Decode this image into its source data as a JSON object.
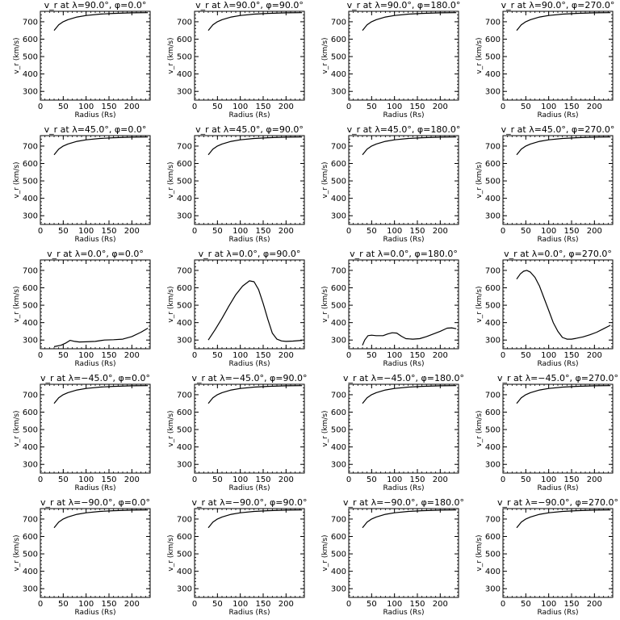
{
  "figure": {
    "xlabel": "Radius (Rs)",
    "ylabel": "v_r (km/s)",
    "xlim": [
      0,
      240
    ],
    "ylim": [
      250,
      760
    ],
    "xticks": [
      0,
      50,
      100,
      150,
      200
    ],
    "yticks": [
      300,
      400,
      500,
      600,
      700
    ]
  },
  "chart_data": [
    {
      "type": "line",
      "title": "v_r at λ=90.0°, φ=0.0°",
      "x": [
        30,
        40,
        50,
        60,
        80,
        100,
        130,
        160,
        200,
        235
      ],
      "y": [
        650,
        682,
        700,
        712,
        727,
        736,
        744,
        748,
        751,
        752
      ]
    },
    {
      "type": "line",
      "title": "v_r at λ=90.0°, φ=90.0°",
      "x": [
        30,
        40,
        50,
        60,
        80,
        100,
        130,
        160,
        200,
        235
      ],
      "y": [
        650,
        682,
        700,
        712,
        727,
        736,
        744,
        748,
        751,
        752
      ]
    },
    {
      "type": "line",
      "title": "v_r at λ=90.0°, φ=180.0°",
      "x": [
        30,
        40,
        50,
        60,
        80,
        100,
        130,
        160,
        200,
        235
      ],
      "y": [
        650,
        682,
        700,
        712,
        727,
        736,
        744,
        748,
        751,
        752
      ]
    },
    {
      "type": "line",
      "title": "v_r at λ=90.0°, φ=270.0°",
      "x": [
        30,
        40,
        50,
        60,
        80,
        100,
        130,
        160,
        200,
        235
      ],
      "y": [
        650,
        682,
        700,
        712,
        727,
        736,
        744,
        748,
        751,
        752
      ]
    },
    {
      "type": "line",
      "title": "v_r at λ=45.0°, φ=0.0°",
      "x": [
        30,
        40,
        50,
        60,
        80,
        100,
        130,
        160,
        200,
        235
      ],
      "y": [
        650,
        682,
        700,
        712,
        727,
        736,
        744,
        748,
        751,
        752
      ]
    },
    {
      "type": "line",
      "title": "v_r at λ=45.0°, φ=90.0°",
      "x": [
        30,
        40,
        50,
        60,
        80,
        100,
        130,
        160,
        200,
        235
      ],
      "y": [
        650,
        682,
        700,
        712,
        727,
        736,
        744,
        748,
        751,
        752
      ]
    },
    {
      "type": "line",
      "title": "v_r at λ=45.0°, φ=180.0°",
      "x": [
        30,
        40,
        50,
        60,
        80,
        100,
        130,
        160,
        200,
        235
      ],
      "y": [
        650,
        682,
        700,
        712,
        727,
        736,
        744,
        748,
        751,
        752
      ]
    },
    {
      "type": "line",
      "title": "v_r at λ=45.0°, φ=270.0°",
      "x": [
        30,
        40,
        50,
        60,
        80,
        100,
        130,
        160,
        200,
        235
      ],
      "y": [
        650,
        682,
        700,
        712,
        727,
        736,
        744,
        748,
        751,
        752
      ]
    },
    {
      "type": "line",
      "title": "v_r at λ=0.0°, φ=0.0°",
      "x": [
        30,
        45,
        55,
        65,
        75,
        85,
        100,
        120,
        140,
        160,
        180,
        200,
        220,
        235
      ],
      "y": [
        262,
        270,
        282,
        298,
        292,
        289,
        290,
        292,
        300,
        302,
        305,
        320,
        345,
        368
      ]
    },
    {
      "type": "line",
      "title": "v_r at λ=0.0°, φ=90.0°",
      "x": [
        30,
        45,
        60,
        75,
        90,
        105,
        120,
        130,
        140,
        150,
        160,
        170,
        180,
        190,
        200,
        215,
        235
      ],
      "y": [
        300,
        360,
        425,
        495,
        560,
        610,
        640,
        635,
        590,
        510,
        420,
        340,
        305,
        295,
        292,
        294,
        298
      ]
    },
    {
      "type": "line",
      "title": "v_r at λ=0.0°, φ=180.0°",
      "x": [
        30,
        35,
        42,
        50,
        60,
        75,
        85,
        95,
        105,
        115,
        125,
        140,
        155,
        170,
        185,
        200,
        215,
        225,
        235
      ],
      "y": [
        270,
        300,
        325,
        328,
        325,
        325,
        335,
        342,
        340,
        322,
        308,
        305,
        308,
        320,
        335,
        350,
        368,
        370,
        365
      ]
    },
    {
      "type": "line",
      "title": "v_r at λ=0.0°, φ=270.0°",
      "x": [
        30,
        38,
        45,
        52,
        60,
        70,
        80,
        90,
        100,
        110,
        120,
        130,
        140,
        150,
        160,
        175,
        190,
        205,
        220,
        235
      ],
      "y": [
        650,
        680,
        695,
        700,
        690,
        660,
        610,
        540,
        470,
        400,
        350,
        315,
        305,
        305,
        310,
        318,
        330,
        345,
        365,
        385
      ]
    },
    {
      "type": "line",
      "title": "v_r at λ=−45.0°, φ=0.0°",
      "x": [
        30,
        40,
        50,
        60,
        80,
        100,
        130,
        160,
        200,
        235
      ],
      "y": [
        650,
        682,
        700,
        712,
        727,
        736,
        744,
        748,
        751,
        752
      ]
    },
    {
      "type": "line",
      "title": "v_r at λ=−45.0°, φ=90.0°",
      "x": [
        30,
        40,
        50,
        60,
        80,
        100,
        130,
        160,
        200,
        235
      ],
      "y": [
        650,
        682,
        700,
        712,
        727,
        736,
        744,
        748,
        751,
        752
      ]
    },
    {
      "type": "line",
      "title": "v_r at λ=−45.0°, φ=180.0°",
      "x": [
        30,
        40,
        50,
        60,
        80,
        100,
        130,
        160,
        200,
        235
      ],
      "y": [
        650,
        682,
        700,
        712,
        727,
        736,
        744,
        748,
        751,
        752
      ]
    },
    {
      "type": "line",
      "title": "v_r at λ=−45.0°, φ=270.0°",
      "x": [
        30,
        40,
        50,
        60,
        80,
        100,
        130,
        160,
        200,
        235
      ],
      "y": [
        650,
        682,
        700,
        712,
        727,
        736,
        744,
        748,
        751,
        752
      ]
    },
    {
      "type": "line",
      "title": "v_r at λ=−90.0°, φ=0.0°",
      "x": [
        30,
        40,
        50,
        60,
        80,
        100,
        130,
        160,
        200,
        235
      ],
      "y": [
        650,
        682,
        700,
        712,
        727,
        736,
        744,
        748,
        751,
        752
      ]
    },
    {
      "type": "line",
      "title": "v_r at λ=−90.0°, φ=90.0°",
      "x": [
        30,
        40,
        50,
        60,
        80,
        100,
        130,
        160,
        200,
        235
      ],
      "y": [
        650,
        682,
        700,
        712,
        727,
        736,
        744,
        748,
        751,
        752
      ]
    },
    {
      "type": "line",
      "title": "v_r at λ=−90.0°, φ=180.0°",
      "x": [
        30,
        40,
        50,
        60,
        80,
        100,
        130,
        160,
        200,
        235
      ],
      "y": [
        650,
        682,
        700,
        712,
        727,
        736,
        744,
        748,
        751,
        752
      ]
    },
    {
      "type": "line",
      "title": "v_r at λ=−90.0°, φ=270.0°",
      "x": [
        30,
        40,
        50,
        60,
        80,
        100,
        130,
        160,
        200,
        235
      ],
      "y": [
        650,
        682,
        700,
        712,
        727,
        736,
        744,
        748,
        751,
        752
      ]
    }
  ]
}
